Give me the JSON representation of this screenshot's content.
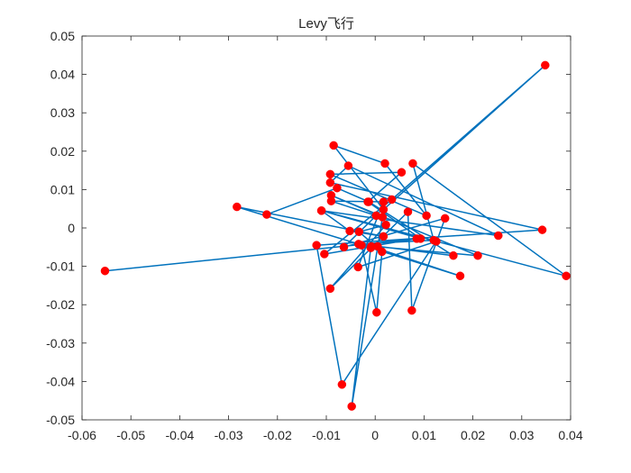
{
  "chart_data": {
    "type": "line",
    "title": "Levy飞行",
    "xlabel": "",
    "ylabel": "",
    "xlim": [
      -0.06,
      0.04
    ],
    "ylim": [
      -0.05,
      0.05
    ],
    "grid": false,
    "xticks": [
      "-0.06",
      "-0.05",
      "-0.04",
      "-0.03",
      "-0.02",
      "-0.01",
      "0",
      "0.01",
      "0.02",
      "0.03",
      "0.04"
    ],
    "yticks": [
      "0.05",
      "0.04",
      "0.03",
      "0.02",
      "0.01",
      "0",
      "-0.01",
      "-0.02",
      "-0.03",
      "-0.04",
      "-0.05"
    ],
    "line_color": "#0072BD",
    "marker_color": "#FF0000",
    "series": [
      {
        "x": [
          -0.0553,
          0.0085,
          -0.0104,
          0.0034,
          0.0348,
          0.0017,
          -0.0085,
          0.002,
          0.0105,
          -0.0092,
          0.0054,
          -0.0015,
          0.0093,
          -0.011,
          -0.0052,
          0.0017,
          -0.0283,
          -0.0034,
          0.012,
          0.0077,
          0.0391,
          -0.011,
          0.0252,
          -0.0055,
          -0.0092,
          0.0342,
          -0.012,
          -0.0068,
          0.0125,
          -0.0035,
          0.0017,
          -0.009,
          0.0002,
          -0.0064,
          0.0143,
          0.0075,
          0.0067,
          -0.0092,
          0.0022,
          -0.0033,
          0.0014,
          0.0003,
          -0.0028,
          0.021,
          -0.009,
          0.0015,
          -0.0048,
          -0.0009,
          0.0174,
          -0.0008,
          0.0005,
          0.016,
          -0.0013,
          -0.0078,
          -0.0222
        ],
        "y": [
          -0.0112,
          -0.0028,
          -0.0068,
          0.0074,
          0.0424,
          0.0048,
          0.0215,
          0.0168,
          0.0032,
          0.014,
          0.0145,
          0.0068,
          -0.0028,
          0.0045,
          -0.0008,
          -0.0022,
          0.0055,
          -0.0042,
          -0.0032,
          0.0168,
          -0.0125,
          0.0045,
          -0.002,
          0.0162,
          0.0118,
          -0.0005,
          -0.0045,
          -0.0408,
          -0.0035,
          -0.0102,
          0.0068,
          0.007,
          0.0032,
          -0.005,
          0.0025,
          -0.0215,
          0.0042,
          -0.0158,
          0.0008,
          -0.001,
          -0.0062,
          -0.022,
          -0.0045,
          -0.0072,
          0.0085,
          0.0028,
          -0.0465,
          -0.0052,
          -0.0125,
          -0.0048,
          -0.0048,
          -0.0072,
          0.0068,
          0.0104,
          0.0035
        ]
      }
    ]
  }
}
